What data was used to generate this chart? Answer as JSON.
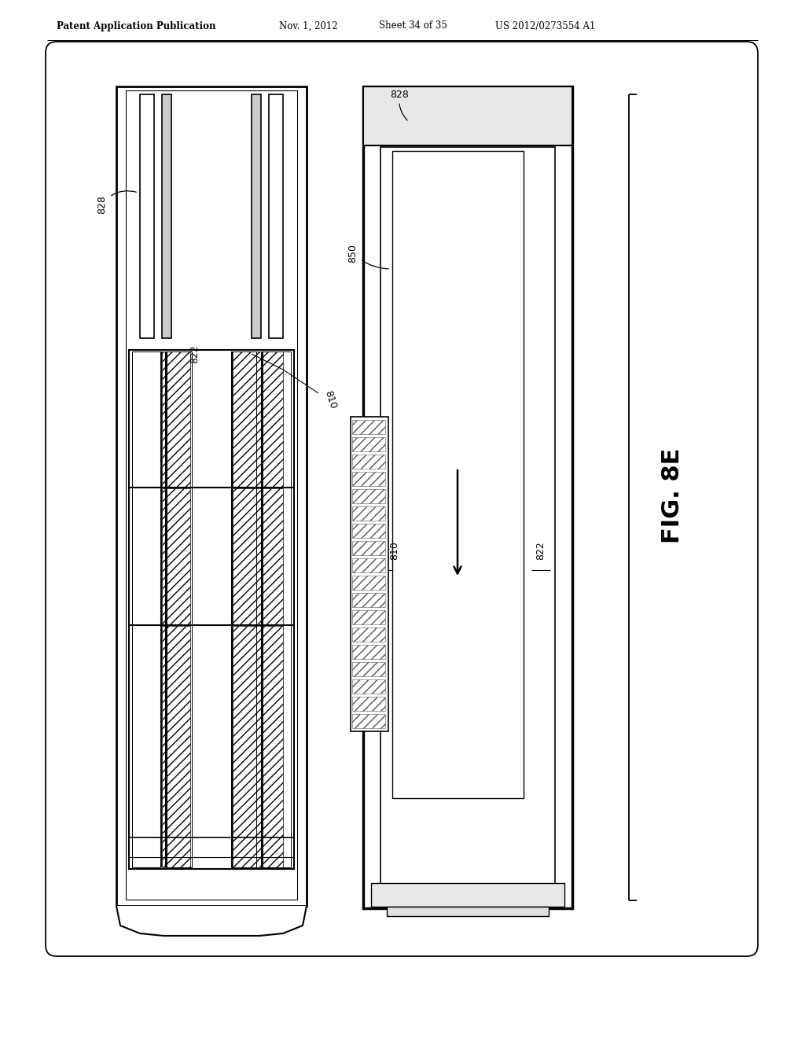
{
  "header_left": "Patent Application Publication",
  "header_date": "Nov. 1, 2012",
  "header_sheet": "Sheet 34 of 35",
  "header_patent": "US 2012/0273554 A1",
  "fig_label": "FIG. 8E",
  "bg": "#ffffff",
  "lc": "#000000"
}
